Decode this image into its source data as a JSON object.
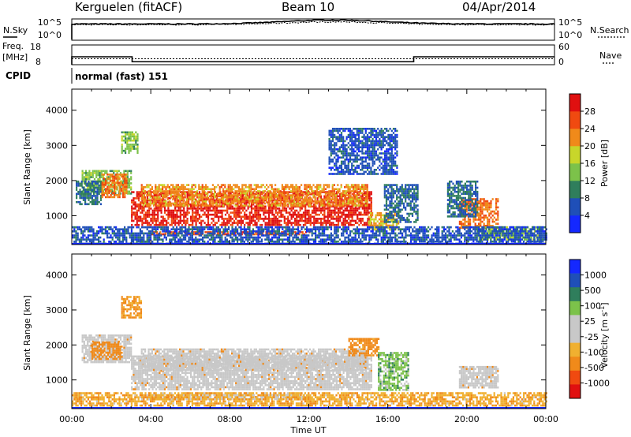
{
  "header": {
    "station": "Kerguelen (fitACF)",
    "beam": "Beam 10",
    "date": "04/Apr/2014"
  },
  "noise_panel": {
    "left_label": "N.Sky",
    "right_label": "N.Search",
    "left_ticks": [
      "10^5",
      "10^0"
    ],
    "right_ticks": [
      "10^5",
      "10^0"
    ]
  },
  "freq_panel": {
    "left_label_1": "Freq.",
    "left_label_2": "[MHz]",
    "right_label": "Nave",
    "left_ticks": [
      "18",
      "8"
    ],
    "right_ticks": [
      "60",
      "0"
    ],
    "freq_steps_hours": [
      0,
      3,
      17,
      24
    ],
    "freq_values_mhz": [
      12,
      9.5,
      12
    ],
    "nave_approx": 18
  },
  "cpid": {
    "label": "CPID",
    "value": "normal (fast) 151"
  },
  "colors": {
    "power": [
      "#1428ff",
      "#1f4fb8",
      "#2f7e5c",
      "#7cc24a",
      "#c8d62a",
      "#f08a1a",
      "#f04a10",
      "#e01010"
    ],
    "velocity": [
      "#e01010",
      "#f04a10",
      "#f08a1a",
      "#f0b030",
      "#c8c8c8",
      "#c8c8c8",
      "#7cc24a",
      "#2f7e5c",
      "#1f4fb8",
      "#1428ff"
    ],
    "ground_scatter": "#c8c8c8"
  },
  "chart_data": [
    {
      "type": "heatmap",
      "title": "Power",
      "ylabel": "Slant Range [km]",
      "ylim": [
        180,
        4600
      ],
      "yticks": [
        "1000",
        "2000",
        "3000",
        "4000"
      ],
      "colorbar_label": "Power [dB]",
      "colorbar_ticks": [
        "4",
        "8",
        "12",
        "16",
        "20",
        "24",
        "28"
      ],
      "clim": [
        0,
        32
      ],
      "regions": [
        {
          "t0": 3.0,
          "t1": 15.2,
          "r0": 750,
          "r1": 1700,
          "value": 29
        },
        {
          "t0": 3.5,
          "t1": 15.0,
          "r0": 1300,
          "r1": 1900,
          "value": 22
        },
        {
          "t0": 4.0,
          "t1": 12.0,
          "r0": 450,
          "r1": 560,
          "value": 26
        },
        {
          "t0": 0.5,
          "t1": 3.0,
          "r0": 1600,
          "r1": 2300,
          "value": 14
        },
        {
          "t0": 0.2,
          "t1": 1.5,
          "r0": 1300,
          "r1": 2000,
          "value": 9
        },
        {
          "t0": 1.5,
          "t1": 2.8,
          "r0": 1500,
          "r1": 2200,
          "value": 24
        },
        {
          "t0": 2.5,
          "t1": 3.3,
          "r0": 2800,
          "r1": 3400,
          "value": 14
        },
        {
          "t0": 15.0,
          "t1": 16.5,
          "r0": 600,
          "r1": 1100,
          "value": 20
        },
        {
          "t0": 15.8,
          "t1": 17.5,
          "r0": 800,
          "r1": 1900,
          "value": 8
        },
        {
          "t0": 13.0,
          "t1": 16.5,
          "r0": 2200,
          "r1": 3500,
          "value": 6
        },
        {
          "t0": 19.6,
          "t1": 21.6,
          "r0": 650,
          "r1": 1500,
          "value": 24
        },
        {
          "t0": 19.0,
          "t1": 20.5,
          "r0": 1000,
          "r1": 2000,
          "value": 8
        },
        {
          "t0": 20.5,
          "t1": 23.8,
          "r0": 300,
          "r1": 700,
          "value": 14
        },
        {
          "t0": 0.0,
          "t1": 24.0,
          "r0": 180,
          "r1": 700,
          "value": 6
        }
      ]
    },
    {
      "type": "heatmap",
      "title": "Velocity",
      "xlabel": "Time UT",
      "ylabel": "Slant Range [km]",
      "xlim": [
        0,
        24
      ],
      "xticks": [
        "00:00",
        "04:00",
        "08:00",
        "12:00",
        "16:00",
        "20:00",
        "00:00"
      ],
      "ylim": [
        180,
        4600
      ],
      "yticks": [
        "1000",
        "2000",
        "3000",
        "4000"
      ],
      "colorbar_label": "Velocity [m s",
      "colorbar_unit_exponent": "-1",
      "colorbar_label_end": "]",
      "colorbar_ticks": [
        "1000",
        "500",
        "100",
        "25",
        "-25",
        "-100",
        "-500",
        "-1000"
      ],
      "regions": [
        {
          "t0": 3.0,
          "t1": 15.2,
          "r0": 750,
          "r1": 1700,
          "value": "ground"
        },
        {
          "t0": 3.5,
          "t1": 15.0,
          "r0": 1300,
          "r1": 1900,
          "value": "ground"
        },
        {
          "t0": 0.5,
          "t1": 3.0,
          "r0": 1500,
          "r1": 2300,
          "value": "ground"
        },
        {
          "t0": 4.0,
          "t1": 12.0,
          "r0": 450,
          "r1": 600,
          "value": "ground"
        },
        {
          "t0": 19.6,
          "t1": 21.6,
          "r0": 800,
          "r1": 1400,
          "value": "ground"
        },
        {
          "t0": 1.0,
          "t1": 2.5,
          "r0": 1600,
          "r1": 2100,
          "value": -200
        },
        {
          "t0": 14.0,
          "t1": 15.5,
          "r0": 1700,
          "r1": 2200,
          "value": -150
        },
        {
          "t0": 15.5,
          "t1": 17.0,
          "r0": 700,
          "r1": 1800,
          "value": 60
        },
        {
          "t0": 0.0,
          "t1": 24.0,
          "r0": 250,
          "r1": 650,
          "value": -80
        },
        {
          "t0": 2.5,
          "t1": 3.5,
          "r0": 2800,
          "r1": 3400,
          "value": -120
        }
      ]
    }
  ],
  "time_axis_label": "Time UT"
}
